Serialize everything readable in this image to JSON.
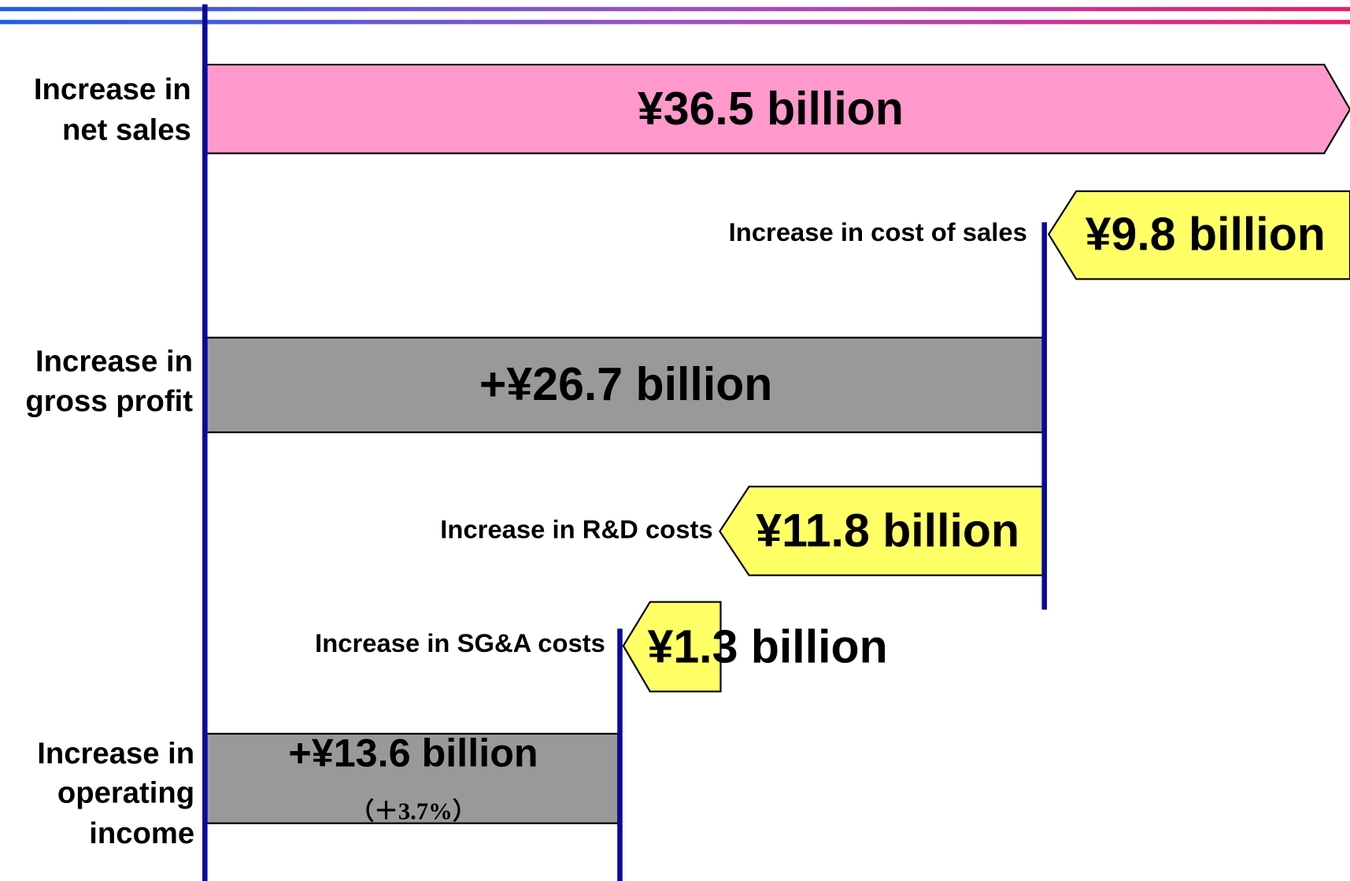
{
  "rows": [
    {
      "label": [
        "Increase in",
        "net sales"
      ],
      "value": "¥36.5 billion"
    },
    {
      "label": [
        "Increase in cost of sales"
      ],
      "value": "¥9.8 billion"
    },
    {
      "label": [
        "Increase in",
        "gross profit"
      ],
      "value": "+¥26.7 billion"
    },
    {
      "label": [
        "Increase in R&D costs"
      ],
      "value": "¥11.8 billion"
    },
    {
      "label": [
        "Increase in SG&A costs"
      ],
      "value": "¥1.3 billion"
    },
    {
      "label": [
        "Increase in",
        "operating",
        "income"
      ],
      "value": "+¥13.6 billion",
      "note": "（＋3.7%）"
    }
  ]
}
